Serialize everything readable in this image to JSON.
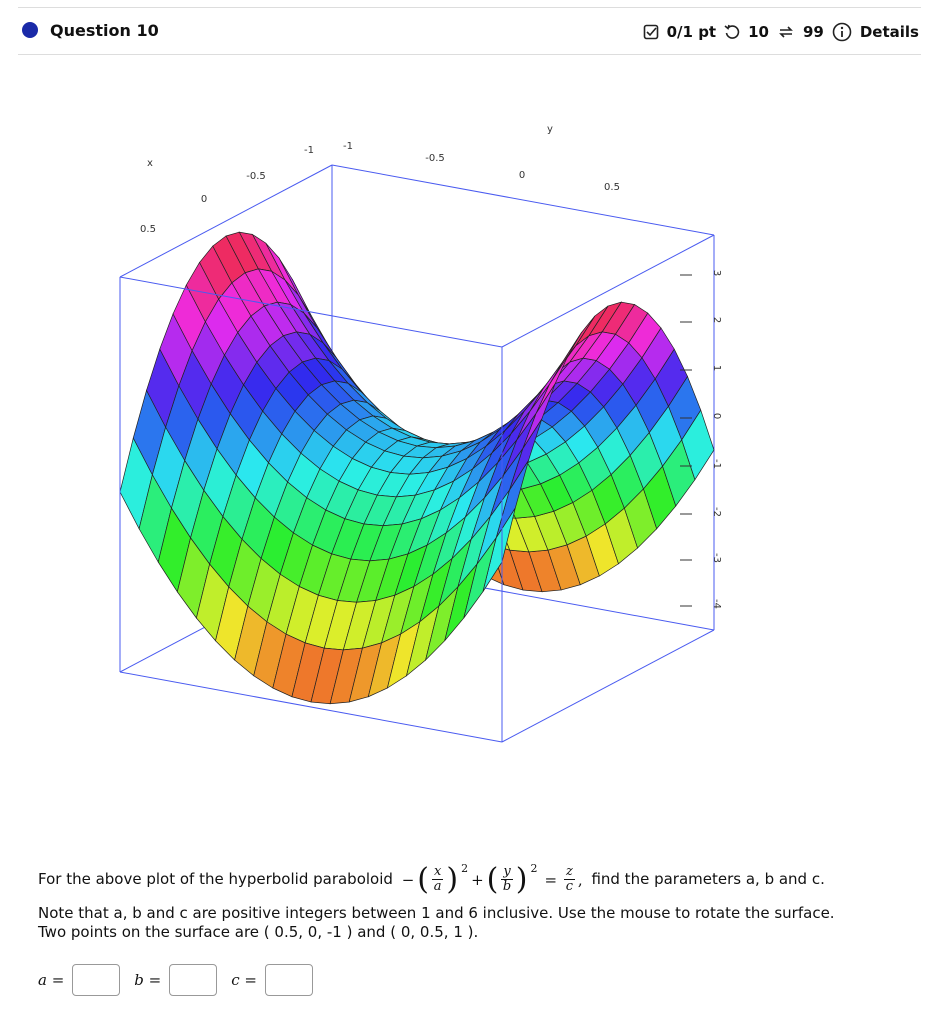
{
  "header": {
    "title": "Question 10",
    "score": "0/1 pt",
    "retries": "10",
    "attempts": "99",
    "details": "Details"
  },
  "plot": {
    "x_axis": {
      "label": "x",
      "ticks": [
        "0.5",
        "0",
        "-0.5",
        "-1"
      ]
    },
    "y_axis": {
      "label": "y",
      "ticks": [
        "-1",
        "-0.5",
        "0",
        "0.5"
      ]
    },
    "z_axis": {
      "ticks": [
        "3",
        "2",
        "1",
        "0",
        "-1",
        "-2",
        "-3",
        "-4"
      ]
    }
  },
  "question": {
    "prefix": "For the above plot of the hyperbolid paraboloid",
    "formula": {
      "minus": "−",
      "lparen": "(",
      "rparen": ")",
      "x": "x",
      "a": "a",
      "exp1": "2",
      "plus": "+",
      "y": "y",
      "b": "b",
      "exp2": "2",
      "eq": "=",
      "z": "z",
      "c": "c",
      "comma": ","
    },
    "suffix": "find the parameters a, b and c.",
    "note": "Note that a, b and c are positive integers between 1 and 6 inclusive. Use the mouse to rotate the surface.",
    "points": "Two points on the surface are ( 0.5, 0, -1 ) and ( 0, 0.5, 1 )."
  },
  "answers": [
    {
      "label": "a ="
    },
    {
      "label": "b ="
    },
    {
      "label": "c ="
    }
  ]
}
